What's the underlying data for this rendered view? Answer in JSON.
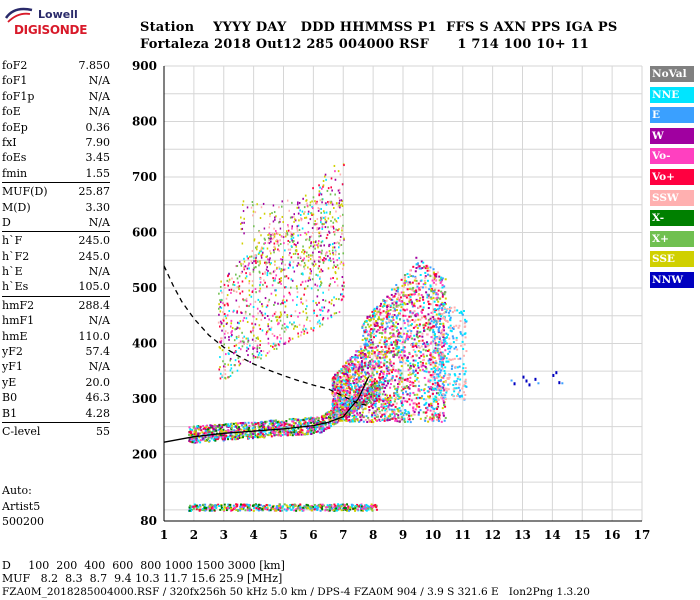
{
  "logo": {
    "top": "Lowell",
    "name": "DIGISONDE"
  },
  "header": {
    "line1": "Station    YYYY DAY   DDD HHMMSS P1  FFS S AXN PPS IGA PS",
    "line2": "Fortaleza 2018 Out12 285 004000 RSF      1 714 100 10+ 11"
  },
  "parameters": [
    [
      {
        "n": "foF2",
        "v": "7.850"
      },
      {
        "n": "foF1",
        "v": "N/A"
      },
      {
        "n": "foF1p",
        "v": "N/A"
      },
      {
        "n": "foE",
        "v": "N/A"
      },
      {
        "n": "foEp",
        "v": "0.36"
      },
      {
        "n": "fxI",
        "v": "7.90"
      },
      {
        "n": "foEs",
        "v": "3.45"
      },
      {
        "n": "fmin",
        "v": "1.55"
      }
    ],
    [
      {
        "n": "MUF(D)",
        "v": "25.87"
      },
      {
        "n": "M(D)",
        "v": "3.30"
      },
      {
        "n": "D",
        "v": "N/A"
      }
    ],
    [
      {
        "n": "h`F",
        "v": "245.0"
      },
      {
        "n": "h`F2",
        "v": "245.0"
      },
      {
        "n": "h`E",
        "v": "N/A"
      },
      {
        "n": "h`Es",
        "v": "105.0"
      }
    ],
    [
      {
        "n": "hmF2",
        "v": "288.4"
      },
      {
        "n": "hmF1",
        "v": "N/A"
      },
      {
        "n": "hmE",
        "v": "110.0"
      },
      {
        "n": "yF2",
        "v": "57.4"
      },
      {
        "n": "yF1",
        "v": "N/A"
      },
      {
        "n": "yE",
        "v": "20.0"
      },
      {
        "n": "B0",
        "v": "46.3"
      },
      {
        "n": "B1",
        "v": "4.28"
      }
    ],
    [
      {
        "n": "C-level",
        "v": "55"
      }
    ]
  ],
  "auto": {
    "l1": "Auto:",
    "l2": "Artist5",
    "l3": "500200"
  },
  "legend": [
    {
      "label": "NoVal",
      "color": "#808080"
    },
    {
      "label": "NNE",
      "color": "#00e5ff"
    },
    {
      "label": "E",
      "color": "#3aa0ff"
    },
    {
      "label": "W",
      "color": "#a000a0"
    },
    {
      "label": "Vo-",
      "color": "#ff40c0"
    },
    {
      "label": "Vo+",
      "color": "#ff0040"
    },
    {
      "label": "SSW",
      "color": "#ffb0b0"
    },
    {
      "label": "X-",
      "color": "#008000"
    },
    {
      "label": "X+",
      "color": "#70c050"
    },
    {
      "label": "SSE",
      "color": "#d0d000"
    },
    {
      "label": "NNW",
      "color": "#0000c0"
    }
  ],
  "chart_data": {
    "type": "scatter",
    "xlim": [
      1,
      17
    ],
    "ylim": [
      80,
      900
    ],
    "xticks": [
      "1",
      "2",
      "3",
      "4",
      "5",
      "6",
      "7",
      "8",
      "9",
      "10",
      "11",
      "12",
      "13",
      "14",
      "15",
      "16",
      "17"
    ],
    "yticks": [
      "80",
      "200",
      "300",
      "400",
      "500",
      "600",
      "700",
      "800",
      "900"
    ],
    "grid": true,
    "traces": [
      {
        "name": "o-trace low",
        "style": "solid",
        "x": [
          1.0,
          2.0,
          3.0,
          4.0,
          5.0,
          6.0,
          6.5,
          7.0,
          7.5,
          7.85
        ],
        "y": [
          222,
          232,
          238,
          242,
          246,
          252,
          258,
          268,
          300,
          340
        ]
      },
      {
        "name": "profile",
        "style": "dashed",
        "x": [
          1.0,
          1.3,
          1.6,
          2.0,
          2.5,
          3.0,
          3.5,
          4.0,
          4.5,
          5.0,
          5.5,
          6.0,
          6.5,
          7.0,
          7.5,
          7.85
        ],
        "y": [
          540,
          505,
          475,
          445,
          415,
          393,
          377,
          363,
          352,
          342,
          333,
          325,
          318,
          305,
          292,
          288
        ]
      }
    ]
  },
  "bottom": {
    "l1": "D     100  200  400  600  800 1000 1500 3000 [km]",
    "l2": "MUF   8.2  8.3  8.7  9.4 10.3 11.7 15.6 25.9 [MHz]",
    "l3": "FZA0M_2018285004000.RSF / 320fx256h 50 kHz 5.0 km / DPS-4 FZA0M 904 / 3.9 S 321.6 E   Ion2Png 1.3.20"
  }
}
